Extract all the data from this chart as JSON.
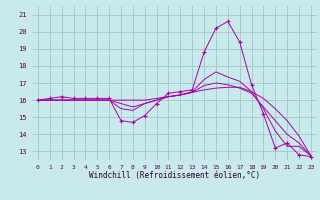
{
  "xlabel": "Windchill (Refroidissement éolien,°C)",
  "background_color": "#c8eaea",
  "grid_color": "#a0c8c8",
  "line_color": "#aa00aa",
  "xlim": [
    -0.5,
    23.5
  ],
  "ylim": [
    12.5,
    21.5
  ],
  "yticks": [
    13,
    14,
    15,
    16,
    17,
    18,
    19,
    20,
    21
  ],
  "xticks": [
    0,
    1,
    2,
    3,
    4,
    5,
    6,
    7,
    8,
    9,
    10,
    11,
    12,
    13,
    14,
    15,
    16,
    17,
    18,
    19,
    20,
    21,
    22,
    23
  ],
  "series": [
    {
      "x": [
        0,
        1,
        2,
        3,
        4,
        5,
        6,
        7,
        8,
        9,
        10,
        11,
        12,
        13,
        14,
        15,
        16,
        17,
        18,
        19,
        20,
        21,
        22,
        23
      ],
      "y": [
        16.0,
        16.1,
        16.2,
        16.1,
        16.1,
        16.1,
        16.1,
        14.8,
        14.7,
        15.1,
        15.8,
        16.4,
        16.5,
        16.6,
        18.8,
        20.2,
        20.6,
        19.4,
        16.9,
        15.2,
        13.2,
        13.5,
        12.8,
        12.7
      ],
      "marker": true
    },
    {
      "x": [
        0,
        1,
        2,
        3,
        4,
        5,
        6,
        7,
        8,
        9,
        10,
        11,
        12,
        13,
        14,
        15,
        16,
        17,
        18,
        19,
        20,
        21,
        22,
        23
      ],
      "y": [
        16.0,
        16.0,
        16.0,
        16.0,
        16.0,
        16.0,
        16.0,
        16.0,
        16.0,
        16.0,
        16.1,
        16.2,
        16.3,
        16.45,
        16.6,
        16.7,
        16.75,
        16.75,
        16.5,
        16.1,
        15.5,
        14.8,
        13.9,
        12.75
      ],
      "marker": false
    },
    {
      "x": [
        0,
        1,
        2,
        3,
        4,
        5,
        6,
        7,
        8,
        9,
        10,
        11,
        12,
        13,
        14,
        15,
        16,
        17,
        18,
        19,
        20,
        21,
        22,
        23
      ],
      "y": [
        16.0,
        16.0,
        16.0,
        16.0,
        16.0,
        16.0,
        16.0,
        15.8,
        15.6,
        15.8,
        16.0,
        16.2,
        16.3,
        16.45,
        16.85,
        17.0,
        16.9,
        16.7,
        16.4,
        15.6,
        14.8,
        14.0,
        13.5,
        12.75
      ],
      "marker": false
    },
    {
      "x": [
        0,
        1,
        2,
        3,
        4,
        5,
        6,
        7,
        8,
        9,
        10,
        11,
        12,
        13,
        14,
        15,
        16,
        17,
        18,
        19,
        20,
        21,
        22,
        23
      ],
      "y": [
        16.0,
        16.0,
        16.0,
        16.0,
        16.0,
        16.0,
        16.0,
        15.5,
        15.4,
        15.8,
        16.0,
        16.2,
        16.3,
        16.5,
        17.2,
        17.65,
        17.35,
        17.1,
        16.5,
        15.5,
        14.2,
        13.3,
        13.3,
        12.75
      ],
      "marker": false
    }
  ]
}
